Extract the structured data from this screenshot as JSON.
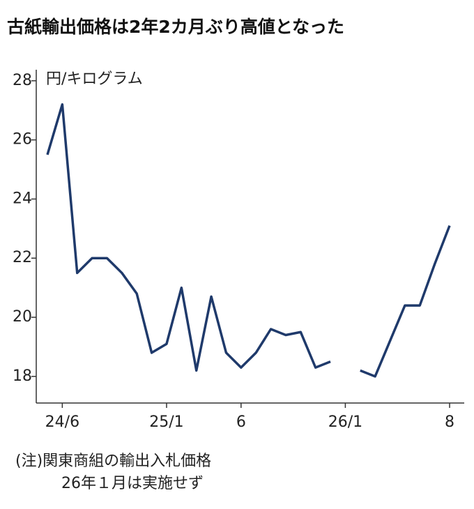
{
  "chart_data": {
    "type": "line",
    "title": "古紙輸出価格は2年2カ月ぶり高値となった",
    "y_label": "円/キログラム",
    "notes": [
      "(注)関東商組の輸出入札価格",
      "26年１月は実施せず"
    ],
    "categories": [
      null,
      "24/6",
      null,
      null,
      null,
      null,
      null,
      null,
      "25/1",
      null,
      null,
      null,
      null,
      "6",
      null,
      null,
      null,
      null,
      null,
      null,
      "26/1",
      null,
      null,
      null,
      null,
      null,
      null,
      "8"
    ],
    "series": [
      {
        "color": "#1f3a6b",
        "values": [
          25.5,
          27.2,
          21.5,
          22.0,
          22.0,
          21.5,
          20.8,
          18.8,
          19.1,
          21.0,
          18.2,
          20.7,
          18.8,
          18.3,
          18.8,
          19.6,
          19.4,
          19.5,
          18.3,
          18.5,
          null,
          18.2,
          18.0,
          19.2,
          20.4,
          20.4,
          21.8,
          23.1
        ]
      }
    ],
    "ylim": [
      17.1,
      28.4
    ],
    "yticks": [
      18,
      20,
      22,
      24,
      26,
      28
    ]
  }
}
